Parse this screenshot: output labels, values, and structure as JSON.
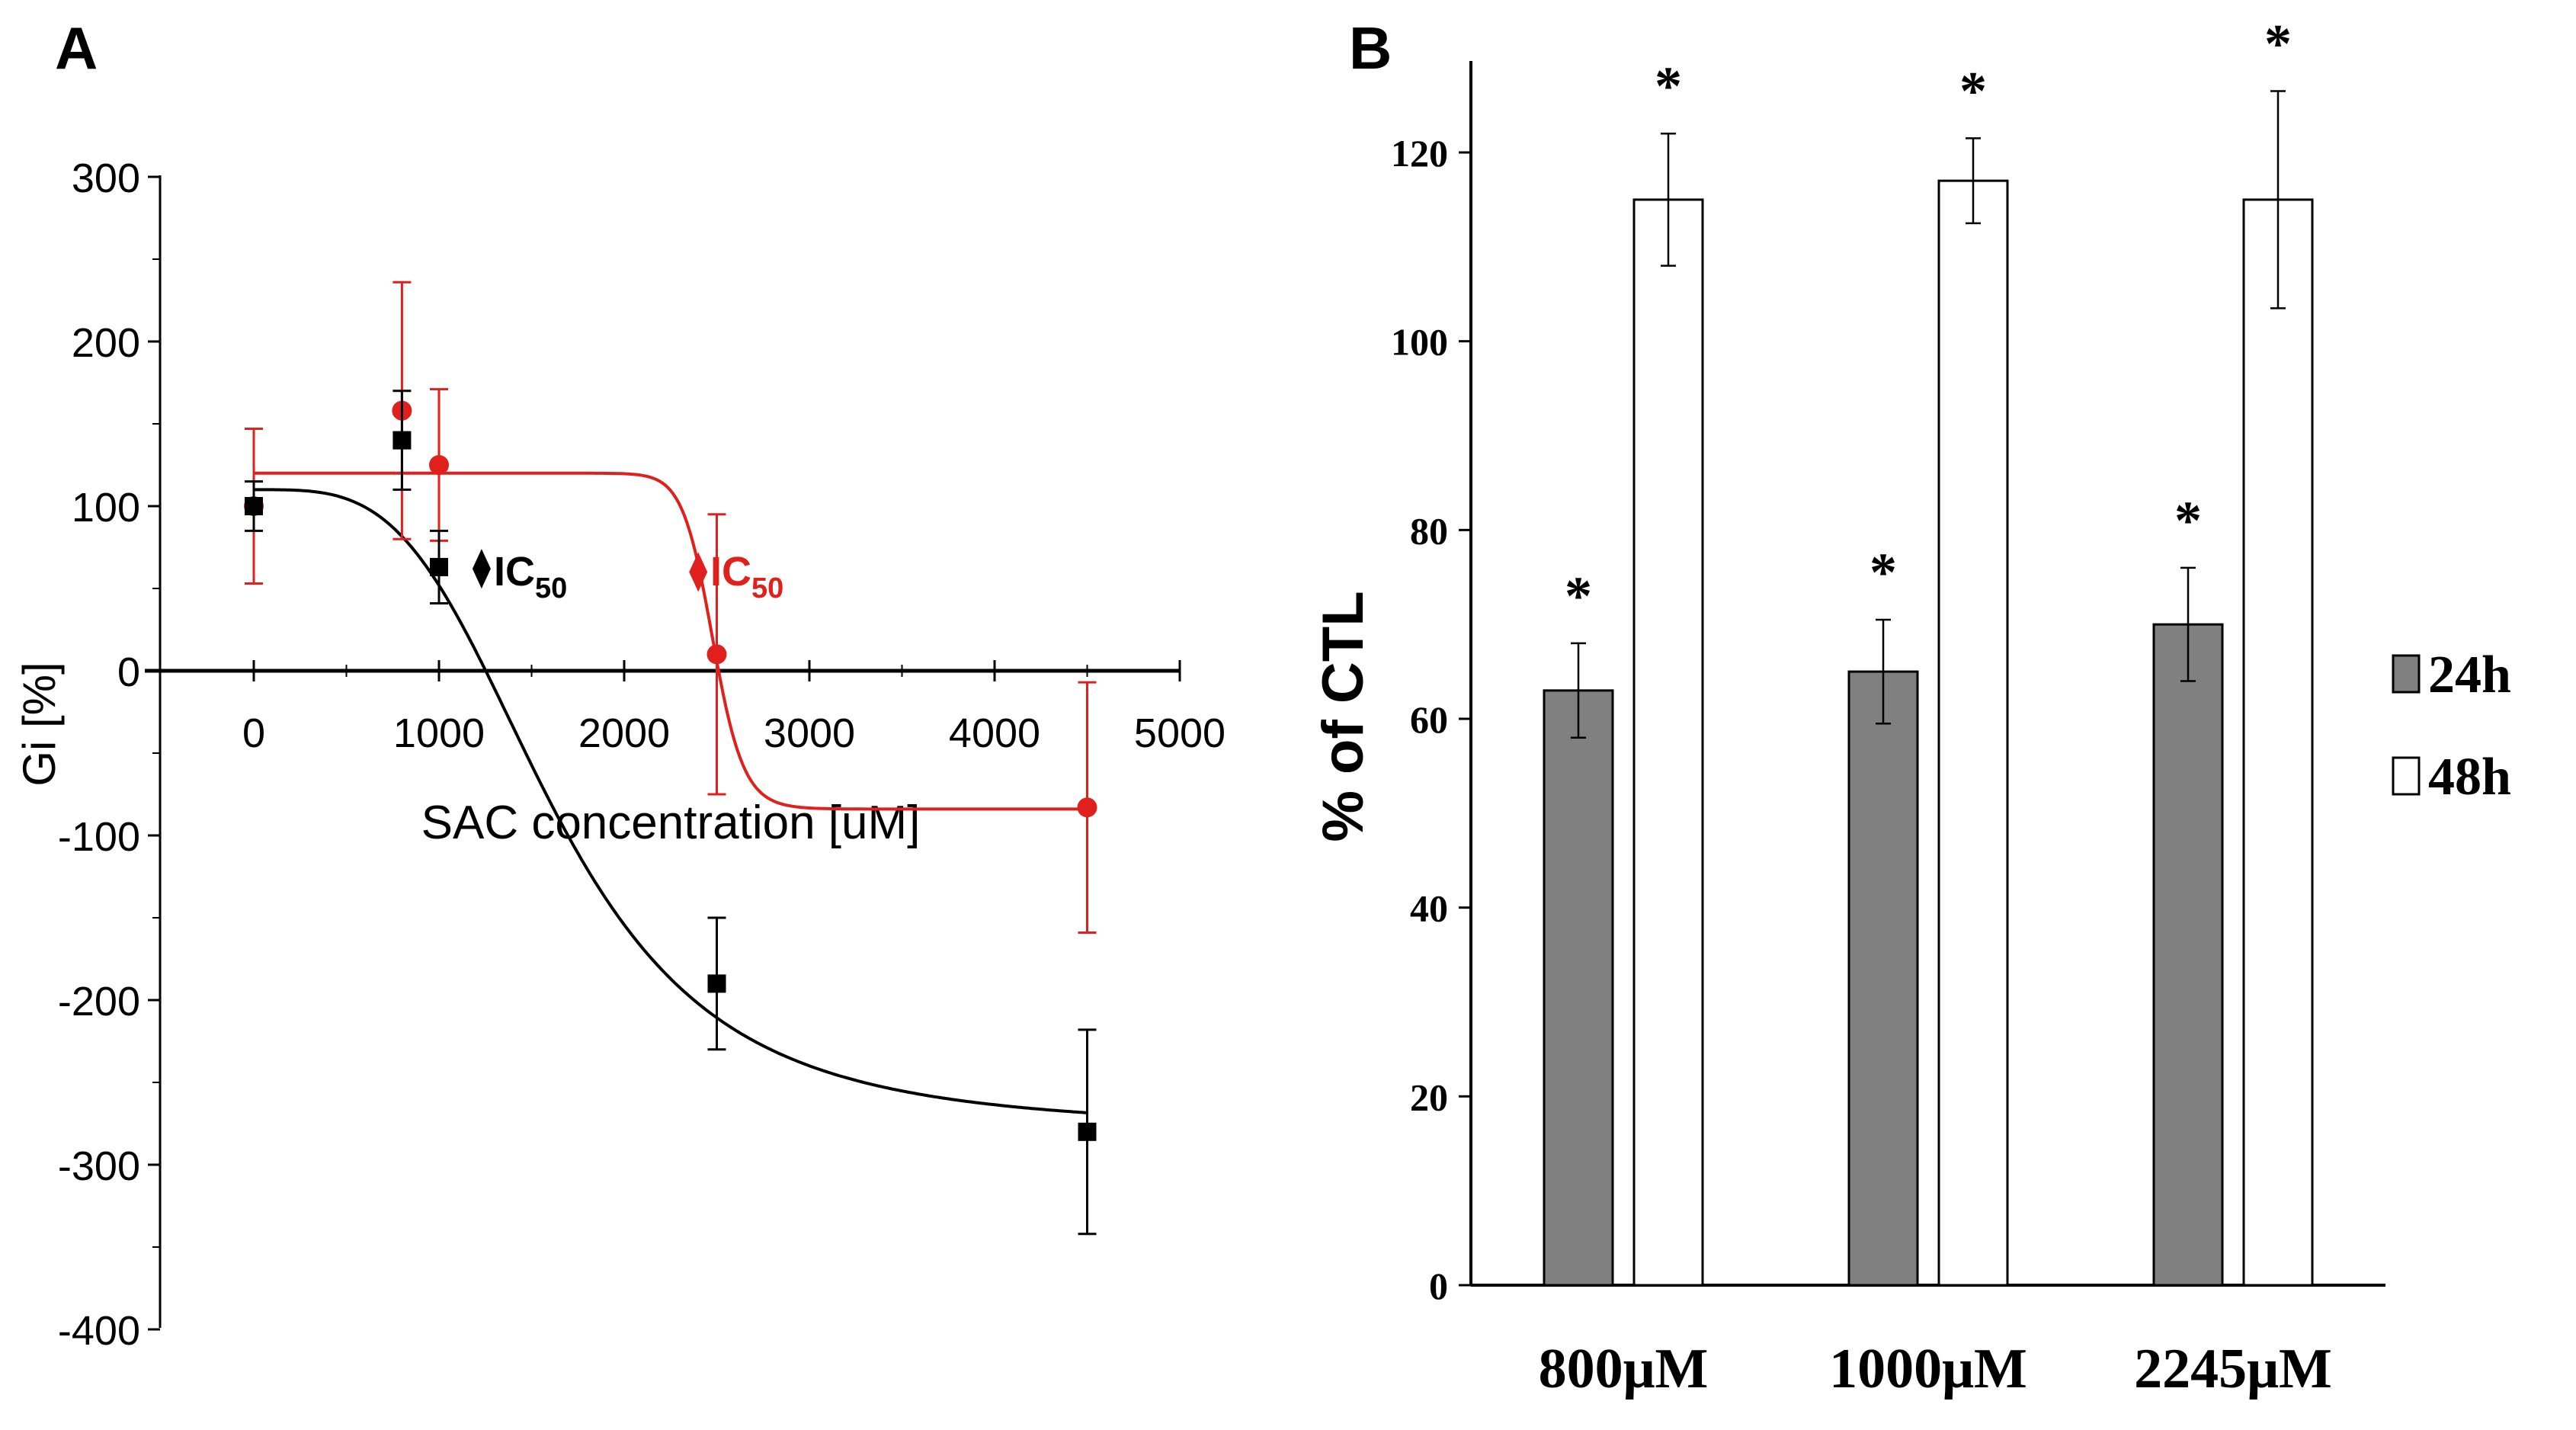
{
  "chart_data": [
    {
      "panel_label": "A",
      "type": "scatter",
      "xlabel": "SAC concentration [uM]",
      "ylabel": "Gi [%]",
      "xlim": [
        -500,
        5000
      ],
      "ylim": [
        -400,
        300
      ],
      "x_ticks": [
        "0",
        "1000",
        "2000",
        "3000",
        "4000",
        "5000"
      ],
      "x_tick_values": [
        0,
        1000,
        2000,
        3000,
        4000,
        5000
      ],
      "y_ticks": [
        "300",
        "200",
        "100",
        "0",
        "-100",
        "-200",
        "-300",
        "-400"
      ],
      "y_tick_values": [
        300,
        200,
        100,
        0,
        -100,
        -200,
        -300,
        -400
      ],
      "series": [
        {
          "color": "#000000",
          "marker": "square",
          "x": [
            0,
            800,
            1000,
            2500,
            4500
          ],
          "y": [
            100,
            140,
            63,
            -190,
            -280
          ],
          "err": [
            15,
            30,
            22,
            40,
            62
          ],
          "fit": {
            "top": 110,
            "bottom": -278,
            "ic50": 1620,
            "hill": 3.6
          },
          "ic50_marker": {
            "x": 1230,
            "y": 62
          }
        },
        {
          "color": "#e0201c",
          "marker": "circle",
          "x": [
            0,
            800,
            1000,
            2500,
            4500
          ],
          "y": [
            100,
            158,
            125,
            10,
            -83
          ],
          "err": [
            47,
            78,
            46,
            85,
            76
          ],
          "fit": {
            "top": 120,
            "bottom": -84,
            "ic50": 2480,
            "hill": 30
          },
          "ic50_marker": {
            "x": 2400,
            "y": 60
          }
        }
      ],
      "annotations": [
        {
          "text": "IC",
          "sub": "50",
          "color": "#000000"
        },
        {
          "text": "IC",
          "sub": "50",
          "color": "#e0201c"
        }
      ]
    },
    {
      "panel_label": "B",
      "type": "bar",
      "xlabel": "",
      "ylabel": "% of CTL",
      "ylim": [
        0,
        130
      ],
      "y_ticks": [
        "0",
        "20",
        "40",
        "60",
        "80",
        "100",
        "120"
      ],
      "y_tick_values": [
        0,
        20,
        40,
        60,
        80,
        100,
        120
      ],
      "categories": [
        "800μM",
        "1000μM",
        "2245μM"
      ],
      "series": [
        {
          "name": "24h",
          "color": "#808080",
          "values": [
            63,
            65,
            70
          ],
          "err": [
            5,
            5.5,
            6
          ],
          "significance": [
            "*",
            "*",
            "*"
          ]
        },
        {
          "name": "48h",
          "color": "#ffffff",
          "values": [
            115,
            117,
            115
          ],
          "err": [
            7,
            4.5,
            11.5
          ],
          "significance": [
            "*",
            "*",
            "*"
          ]
        }
      ],
      "legend_position": "right"
    }
  ]
}
